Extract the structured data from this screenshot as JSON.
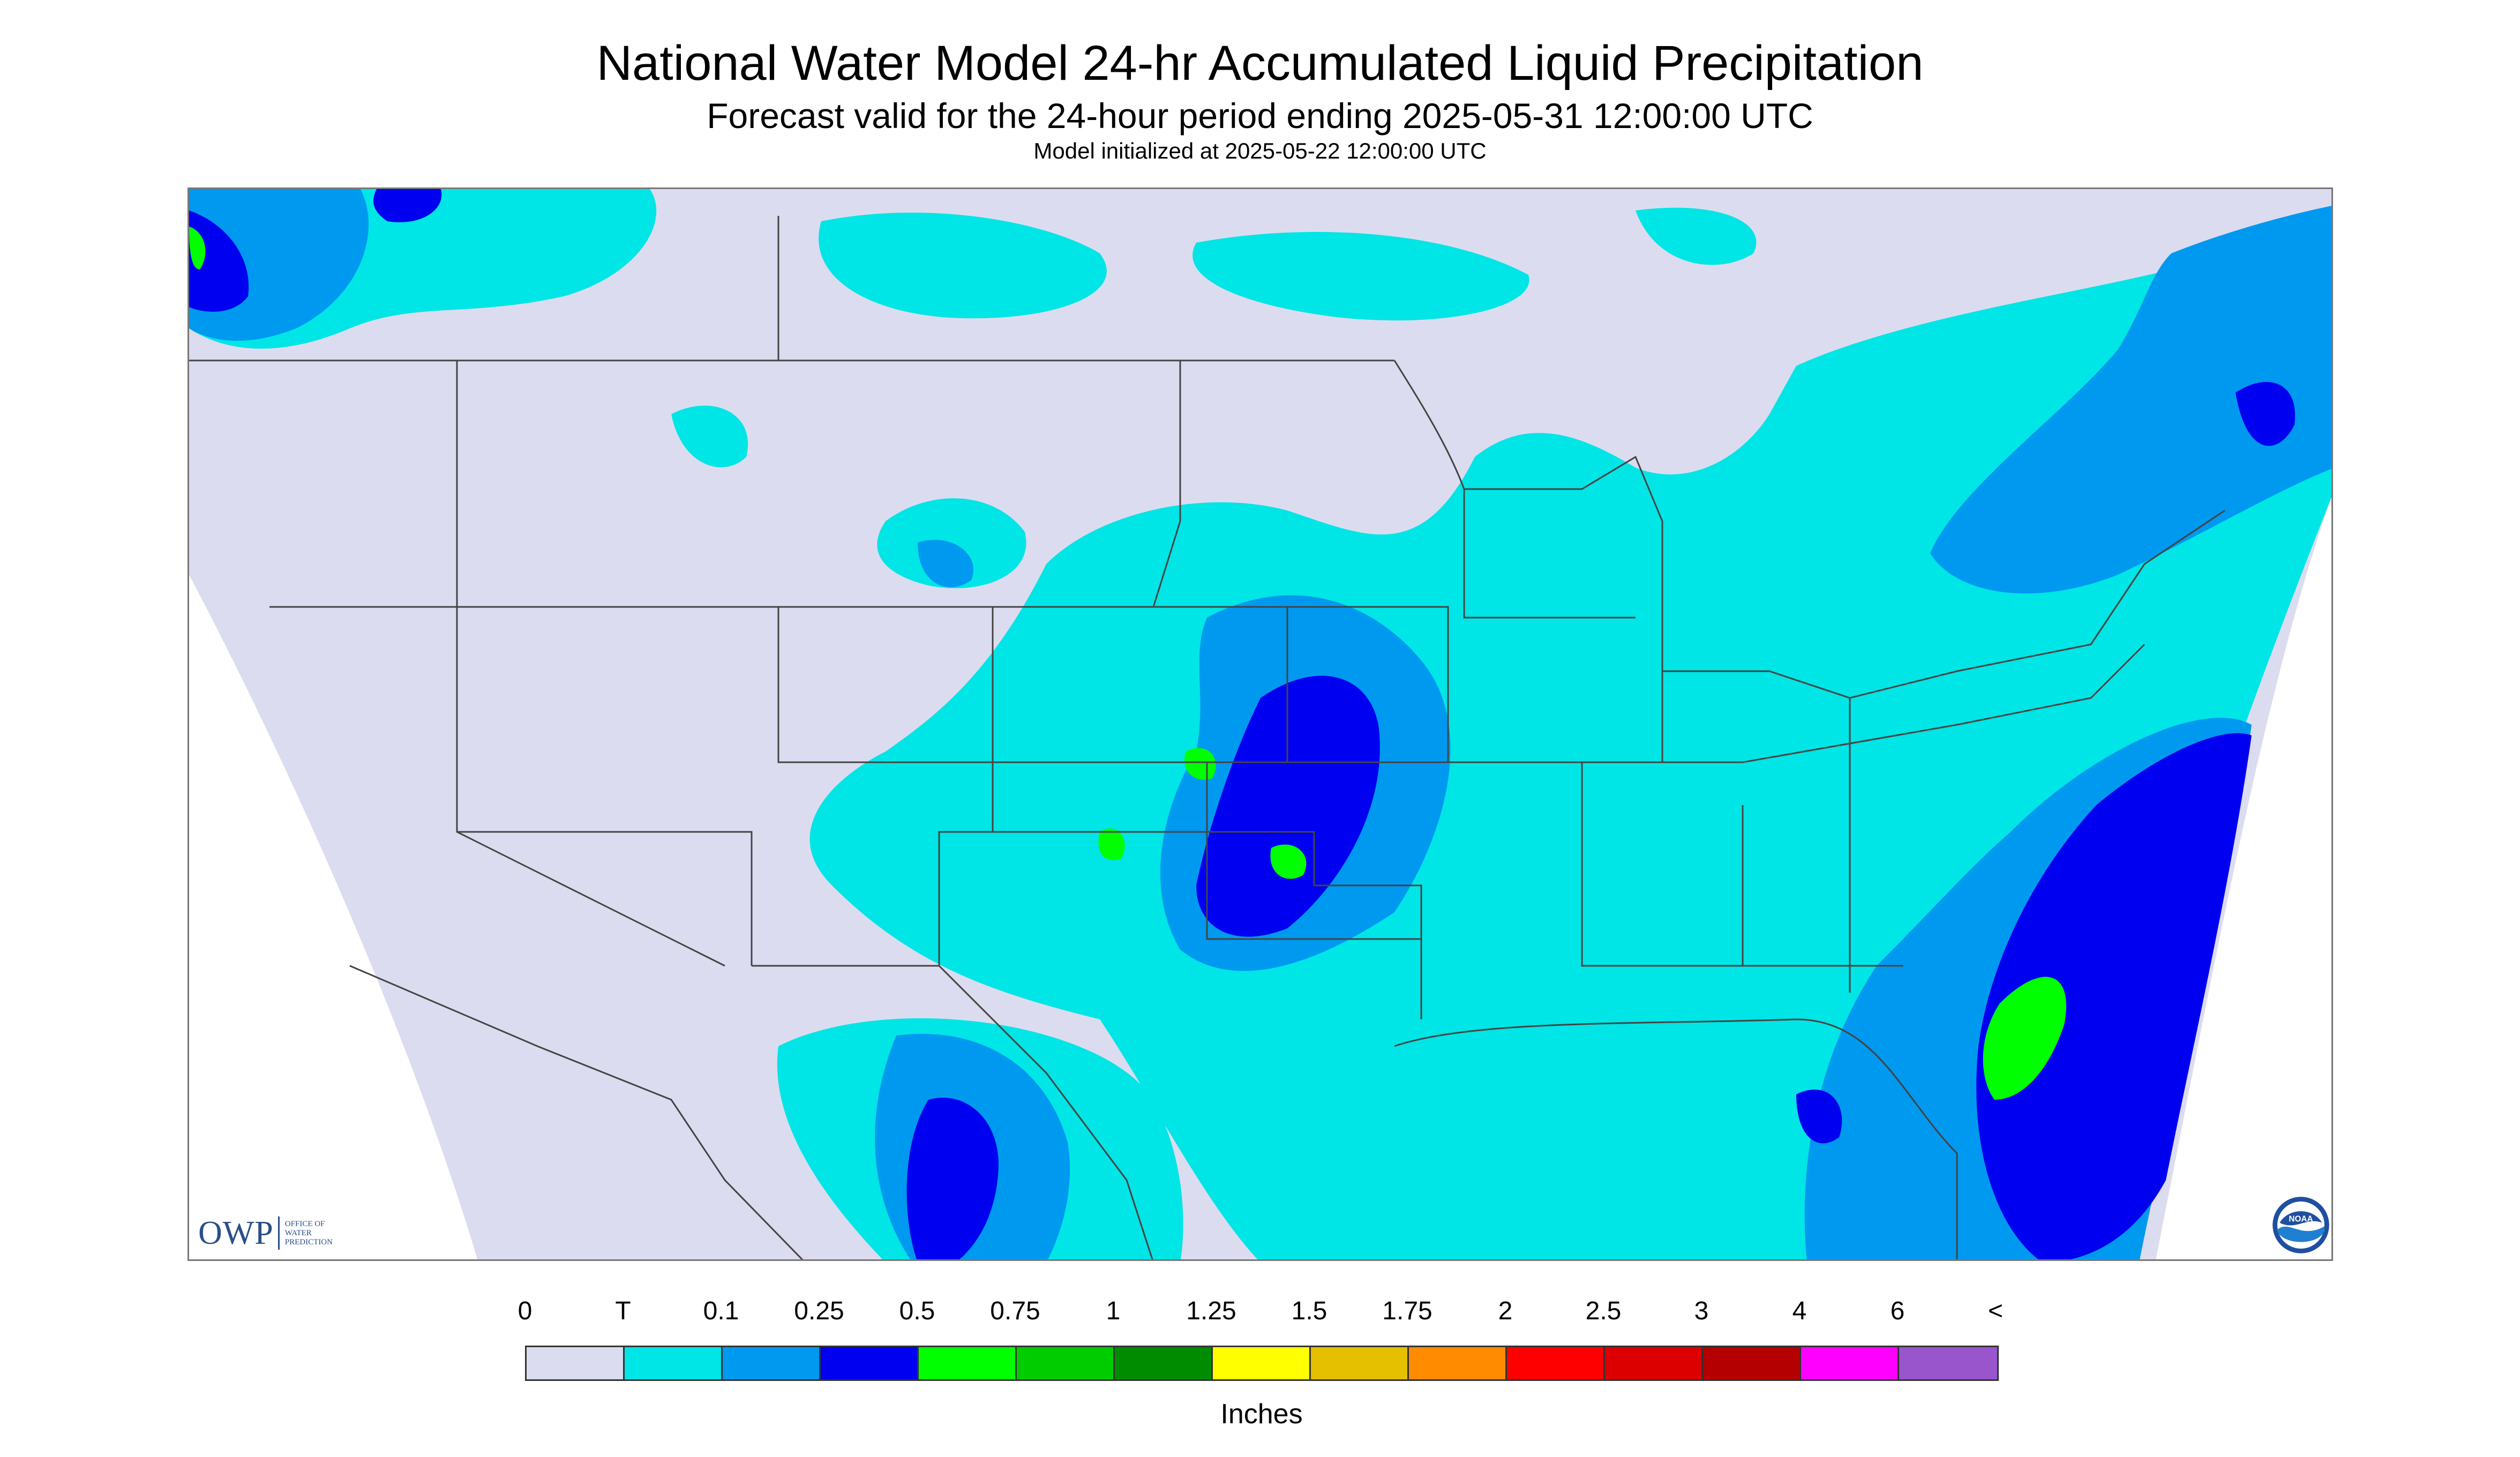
{
  "header": {
    "title": "National Water Model 24-hr Accumulated Liquid Precipitation",
    "subtitle": "Forecast valid for the 24-hour period ending 2025-05-31 12:00:00 UTC",
    "init": "Model initialized at 2025-05-22 12:00:00 UTC"
  },
  "logo": {
    "owp_mark": "OWP",
    "owp_lines": [
      "OFFICE OF",
      "WATER",
      "PREDICTION"
    ],
    "noaa_text": "NOAA"
  },
  "legend": {
    "labels": [
      "0",
      "T",
      "0.1",
      "0.25",
      "0.5",
      "0.75",
      "1",
      "1.25",
      "1.5",
      "1.75",
      "2",
      "2.5",
      "3",
      "4",
      "6",
      "<"
    ],
    "colors": [
      "#dcdcf0",
      "#00e5e5",
      "#0099f0",
      "#0000f0",
      "#00ff00",
      "#00cc00",
      "#008c00",
      "#ffff00",
      "#e5c000",
      "#ff8c00",
      "#ff0000",
      "#dc0000",
      "#b40000",
      "#ff00ff",
      "#9955cc"
    ],
    "units": "Inches"
  },
  "map_colors": {
    "background": "#dcdcf0",
    "trace": "#00e5e5",
    "light": "#0099f0",
    "moderate": "#0000f0",
    "heavy": "#00ff00",
    "border": "#444444"
  }
}
